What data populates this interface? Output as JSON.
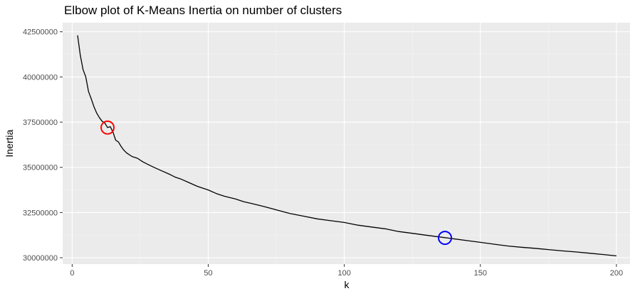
{
  "chart_data": {
    "type": "line",
    "title": "Elbow plot of K-Means Inertia on number of clusters",
    "xlabel": "k",
    "ylabel": "Inertia",
    "xlim": [
      -3.5,
      205
    ],
    "ylim": [
      29650000,
      43000000
    ],
    "x_ticks": [
      0,
      50,
      100,
      150,
      200
    ],
    "x_tick_labels": [
      "0",
      "50",
      "100",
      "150",
      "200"
    ],
    "y_ticks": [
      30000000,
      32500000,
      35000000,
      37500000,
      40000000,
      42500000
    ],
    "y_tick_labels": [
      "30000000",
      "32500000",
      "35000000",
      "37500000",
      "40000000",
      "42500000"
    ],
    "grid": true,
    "colors": {
      "panel": "#ebebeb",
      "line": "#000000",
      "highlight_1": "#ff0000",
      "highlight_2": "#0000ff"
    },
    "series": [
      {
        "x": [
          2,
          3,
          4,
          5,
          6,
          7,
          8,
          9,
          10,
          11,
          12,
          13,
          14,
          15,
          16,
          17,
          18,
          19,
          20,
          22,
          24,
          26,
          28,
          30,
          33,
          36,
          38,
          40,
          43,
          46,
          50,
          53,
          56,
          60,
          63,
          66,
          70,
          75,
          80,
          85,
          90,
          95,
          100,
          105,
          110,
          115,
          120,
          125,
          130,
          135,
          140,
          145,
          150,
          155,
          160,
          165,
          170,
          175,
          180,
          185,
          190,
          195,
          200
        ],
        "y": [
          42300000,
          41200000,
          40400000,
          40000000,
          39200000,
          38800000,
          38350000,
          38000000,
          37750000,
          37550000,
          37450000,
          37200000,
          37250000,
          36950000,
          36500000,
          36400000,
          36150000,
          35950000,
          35800000,
          35600000,
          35500000,
          35300000,
          35150000,
          35000000,
          34800000,
          34600000,
          34450000,
          34350000,
          34150000,
          33950000,
          33750000,
          33550000,
          33400000,
          33250000,
          33100000,
          33000000,
          32850000,
          32650000,
          32450000,
          32300000,
          32150000,
          32050000,
          31950000,
          31800000,
          31700000,
          31600000,
          31450000,
          31350000,
          31250000,
          31150000,
          31050000,
          30950000,
          30850000,
          30750000,
          30650000,
          30580000,
          30520000,
          30450000,
          30380000,
          30320000,
          30250000,
          30180000,
          30100000
        ]
      }
    ],
    "highlights": [
      {
        "x": 13,
        "y": 37200000,
        "color": "#ff0000"
      },
      {
        "x": 137,
        "y": 31100000,
        "color": "#0000ff"
      }
    ]
  }
}
